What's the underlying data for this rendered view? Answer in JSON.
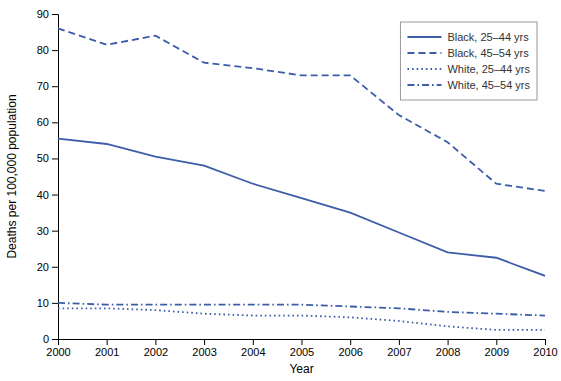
{
  "chart_data": {
    "type": "line",
    "xlabel": "Year",
    "ylabel": "Deaths per 100,000 population",
    "x": [
      2000,
      2001,
      2002,
      2003,
      2004,
      2005,
      2006,
      2007,
      2008,
      2009,
      2010
    ],
    "xlim": [
      2000,
      2010
    ],
    "xticks": [
      2000,
      2001,
      2002,
      2003,
      2004,
      2005,
      2006,
      2007,
      2008,
      2009,
      2010
    ],
    "ylim": [
      0,
      90
    ],
    "yticks": [
      0,
      10,
      20,
      30,
      40,
      50,
      60,
      70,
      80,
      90
    ],
    "grid": false,
    "legend": "upper right",
    "series": [
      {
        "name": "Black, 25–44 yrs",
        "color": "#3C5DA8",
        "line_style": "solid",
        "values": [
          55.5,
          54.0,
          50.5,
          48.0,
          43.0,
          39.0,
          35.0,
          29.5,
          24.0,
          22.5,
          17.5
        ]
      },
      {
        "name": "Black, 45–54 yrs",
        "color": "#3C5DA8",
        "line_style": "dashed",
        "values": [
          86.0,
          81.5,
          84.0,
          76.5,
          75.0,
          73.0,
          73.0,
          62.0,
          54.5,
          43.0,
          41.0
        ]
      },
      {
        "name": "White, 25–44 yrs",
        "color": "#3C5DA8",
        "line_style": "dotted",
        "values": [
          8.5,
          8.5,
          8.0,
          7.0,
          6.5,
          6.5,
          6.0,
          5.0,
          3.5,
          2.5,
          2.5
        ]
      },
      {
        "name": "White, 45–54 yrs",
        "color": "#3C5DA8",
        "line_style": "dashdot",
        "values": [
          10.0,
          9.5,
          9.5,
          9.5,
          9.5,
          9.5,
          9.0,
          8.5,
          7.5,
          7.0,
          6.5
        ]
      }
    ]
  }
}
